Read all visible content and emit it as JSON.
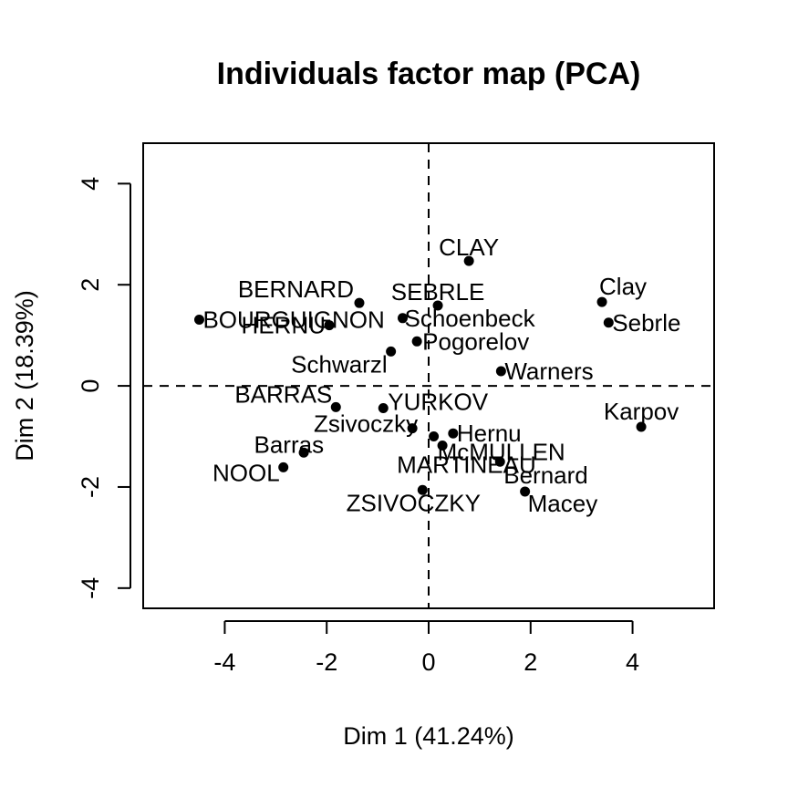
{
  "chart_data": {
    "type": "scatter",
    "title": "Individuals factor map (PCA)",
    "xlabel": "Dim 1 (41.24%)",
    "ylabel": "Dim 2 (18.39%)",
    "xlim": [
      -5.6,
      5.6
    ],
    "ylim": [
      -4.4,
      4.8
    ],
    "xticks": [
      -4,
      -2,
      0,
      2,
      4
    ],
    "yticks": [
      -4,
      -2,
      0,
      2,
      4
    ],
    "xtick_labels": [
      "-4",
      "-2",
      "0",
      "2",
      "4"
    ],
    "ytick_labels": [
      "-4",
      "-2",
      "0",
      "2",
      "4"
    ],
    "grid": false,
    "reference_lines": {
      "x": 0,
      "y": 0,
      "style": "dashed"
    },
    "colors": {
      "points": "#000000",
      "axes": "#000000",
      "reference": "#000000"
    },
    "points": [
      {
        "label": "CLAY",
        "x": 0.79,
        "y": 2.47
      },
      {
        "label": "Clay",
        "x": 3.4,
        "y": 1.66
      },
      {
        "label": "BERNARD",
        "x": -1.36,
        "y": 1.64
      },
      {
        "label": "SEBRLE",
        "x": 0.18,
        "y": 1.59
      },
      {
        "label": "BOURGUIGNON",
        "x": -4.5,
        "y": 1.31
      },
      {
        "label": "Schoenbeck",
        "x": -0.51,
        "y": 1.34
      },
      {
        "label": "Sebrle",
        "x": 3.53,
        "y": 1.25
      },
      {
        "label": "HERNU",
        "x": -1.95,
        "y": 1.2
      },
      {
        "label": "Pogorelov",
        "x": -0.23,
        "y": 0.88
      },
      {
        "label": "Schwarzl",
        "x": -0.74,
        "y": 0.68
      },
      {
        "label": "Warners",
        "x": 1.42,
        "y": 0.29
      },
      {
        "label": "BARRAS",
        "x": -1.82,
        "y": -0.42
      },
      {
        "label": "YURKOV",
        "x": -0.89,
        "y": -0.44
      },
      {
        "label": "Karpov",
        "x": 4.17,
        "y": -0.81
      },
      {
        "label": "Zsivoczky",
        "x": -0.32,
        "y": -0.84
      },
      {
        "label": "Hernu",
        "x": 0.48,
        "y": -0.94
      },
      {
        "label": "McMULLEN",
        "x": 0.1,
        "y": -1.0
      },
      {
        "label": "Barras",
        "x": -2.45,
        "y": -1.32
      },
      {
        "label": "MARTINEAU",
        "x": 0.27,
        "y": -1.18
      },
      {
        "label": "Bernard",
        "x": 1.4,
        "y": -1.5
      },
      {
        "label": "NOOL",
        "x": -2.85,
        "y": -1.61
      },
      {
        "label": "Macey",
        "x": 1.89,
        "y": -2.09
      },
      {
        "label": "ZSIVOCZKY",
        "x": -0.12,
        "y": -2.06
      }
    ]
  }
}
